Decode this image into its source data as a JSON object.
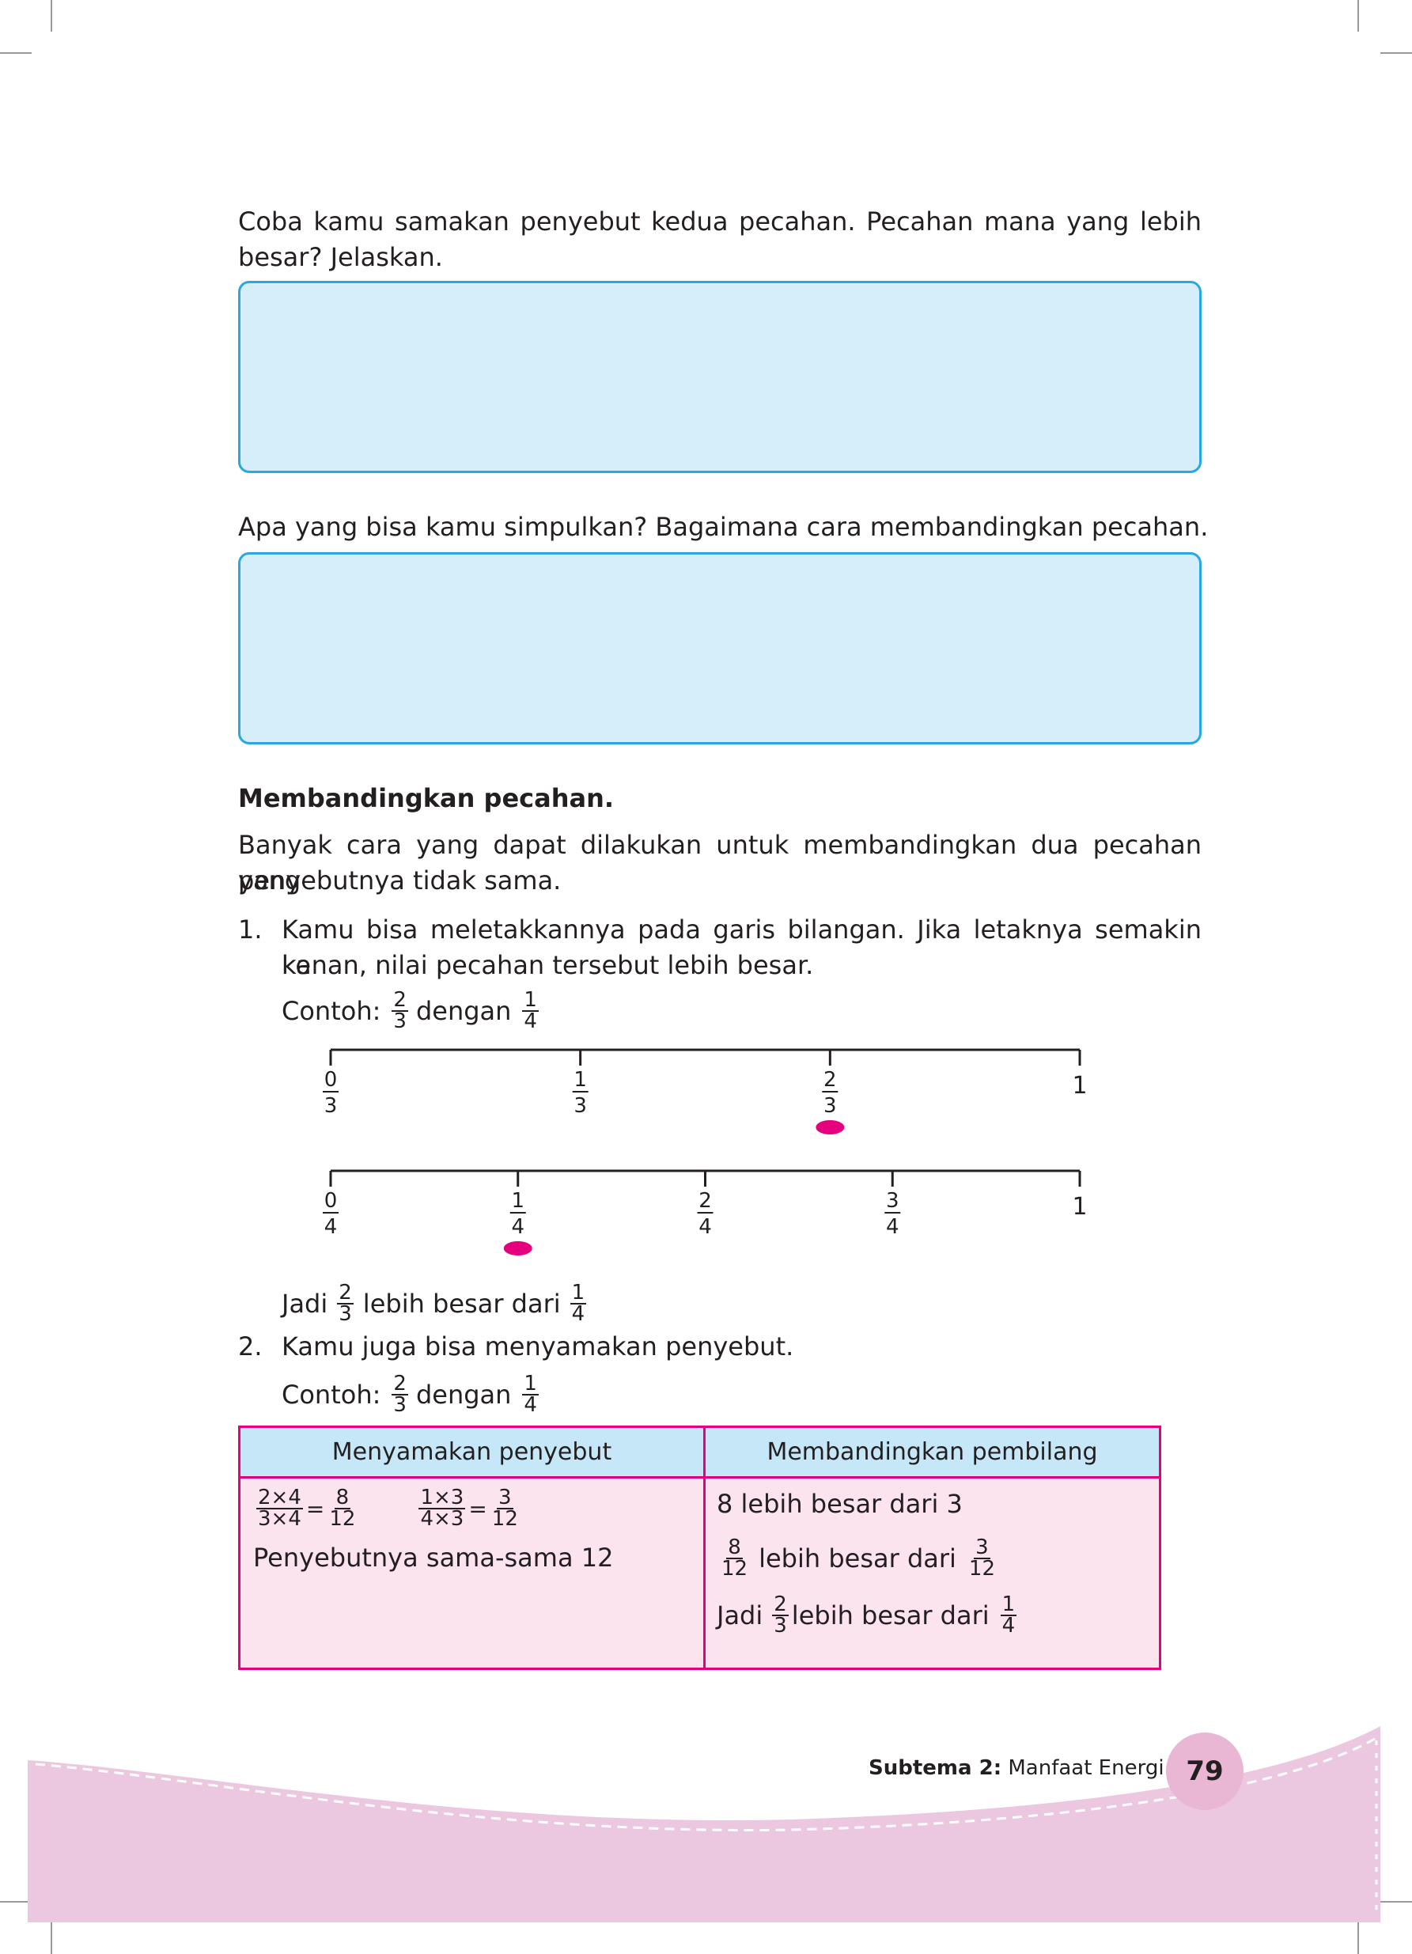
{
  "q1": {
    "text": "Coba kamu samakan penyebut kedua pecahan. Pecahan mana yang lebih",
    "text2": "besar? Jelaskan."
  },
  "q2": {
    "text": "Apa yang bisa kamu simpulkan? Bagaimana cara membandingkan pecahan."
  },
  "section": {
    "heading": "Membandingkan pecahan.",
    "intro1": "Banyak cara yang dapat dilakukan untuk membandingkan dua pecahan yang",
    "intro2": "penyebutnya tidak sama."
  },
  "item1": {
    "num": "1.",
    "line1": "Kamu bisa meletakkannya pada garis bilangan. Jika letaknya semakin ke",
    "line2": "kanan, nilai pecahan tersebut lebih besar.",
    "example_prefix": "Contoh:",
    "example_mid": "dengan",
    "a_num": "2",
    "a_den": "3",
    "b_num": "1",
    "b_den": "4",
    "line_thirds": [
      {
        "n": "0",
        "d": "3"
      },
      {
        "n": "1",
        "d": "3"
      },
      {
        "n": "2",
        "d": "3"
      },
      {
        "n": "1",
        "d": ""
      }
    ],
    "line_quarters": [
      {
        "n": "0",
        "d": "4"
      },
      {
        "n": "1",
        "d": "4"
      },
      {
        "n": "2",
        "d": "4"
      },
      {
        "n": "3",
        "d": "4"
      },
      {
        "n": "1",
        "d": ""
      }
    ],
    "marked_thirds": "2/3",
    "marked_quarters": "1/4",
    "dot_color": "#e5007e",
    "conclusion_prefix": "Jadi",
    "conclusion_mid": "lebih besar dari"
  },
  "item2": {
    "num": "2.",
    "line1": "Kamu juga bisa menyamakan penyebut.",
    "example_prefix": "Contoh:",
    "example_mid": "dengan",
    "a_num": "2",
    "a_den": "3",
    "b_num": "1",
    "b_den": "4"
  },
  "table": {
    "header_left": "Menyamakan penyebut",
    "header_right": "Membandingkan pembilang",
    "eq1_num": "2×4",
    "eq1_den": "3×4",
    "eq1_rn": "8",
    "eq1_rd": "12",
    "eq2_num": "1×3",
    "eq2_den": "4×3",
    "eq2_rn": "3",
    "eq2_rd": "12",
    "equals": "=",
    "left_note": "Penyebutnya sama-sama 12",
    "right_line1": "8 lebih besar dari 3",
    "right_line2_mid": "lebih besar dari",
    "r2_an": "8",
    "r2_ad": "12",
    "r2_bn": "3",
    "r2_bd": "12",
    "right_line3_prefix": "Jadi",
    "right_line3_mid": "lebih besar dari",
    "r3_an": "2",
    "r3_ad": "3",
    "r3_bn": "1",
    "r3_bd": "4",
    "colors": {
      "header_bg": "#c5e7f7",
      "body_bg": "#fce4ef",
      "border": "#e5007e"
    }
  },
  "footer": {
    "subtema_label": "Subtema 2:",
    "subtema_title": "Manfaat Energi",
    "page_number": "79",
    "colors": {
      "wave": "#ecc8e0",
      "badge": "#e9b6d4"
    }
  }
}
